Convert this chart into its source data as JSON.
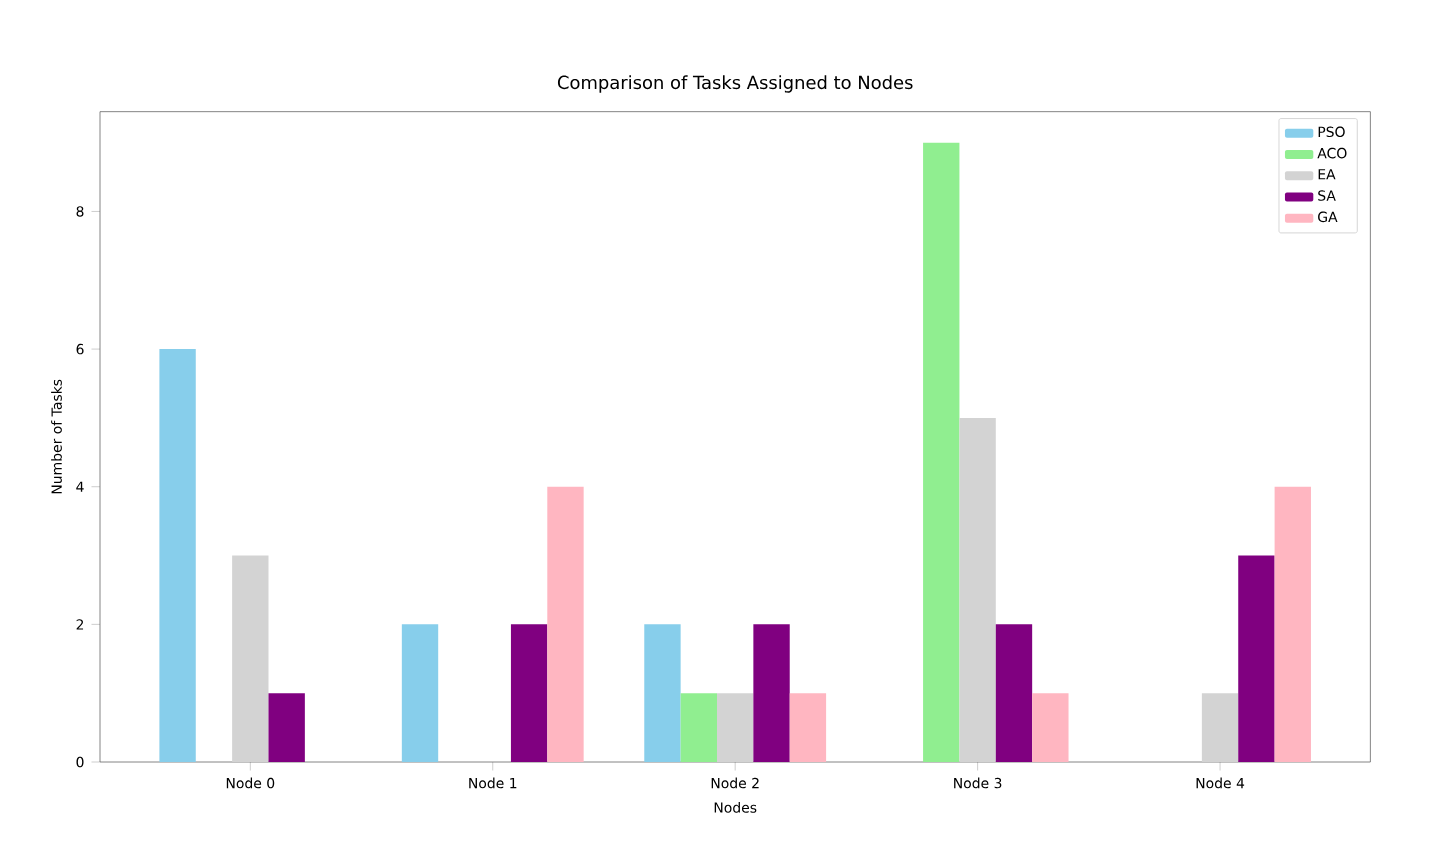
{
  "chart_data": {
    "type": "bar",
    "title": "Comparison of Tasks Assigned to Nodes",
    "xlabel": "Nodes",
    "ylabel": "Number of Tasks",
    "categories": [
      "Node 0",
      "Node 1",
      "Node 2",
      "Node 3",
      "Node 4"
    ],
    "series": [
      {
        "name": "PSO",
        "color": "#87ceeb",
        "values": [
          6,
          2,
          2,
          0,
          0
        ]
      },
      {
        "name": "ACO",
        "color": "#90ee90",
        "values": [
          0,
          0,
          1,
          9,
          0
        ]
      },
      {
        "name": "EA",
        "color": "#d3d3d3",
        "values": [
          3,
          0,
          1,
          5,
          1
        ]
      },
      {
        "name": "SA",
        "color": "#800080",
        "values": [
          1,
          2,
          2,
          2,
          3
        ]
      },
      {
        "name": "GA",
        "color": "#ffb6c1",
        "values": [
          0,
          4,
          1,
          1,
          4
        ]
      }
    ],
    "ylim": [
      0,
      9.45
    ],
    "yticks": [
      0,
      2,
      4,
      6,
      8
    ],
    "legend": "top right",
    "grid": false
  }
}
